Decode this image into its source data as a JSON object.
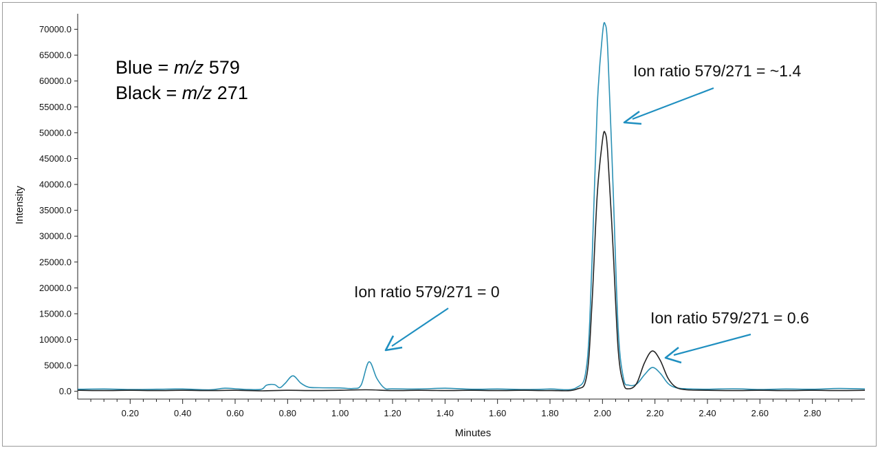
{
  "chart_data": {
    "type": "line",
    "xlabel": "Minutes",
    "ylabel": "Intensity",
    "xlim": [
      0.0,
      3.0
    ],
    "ylim": [
      -1500,
      73000
    ],
    "x_ticks": [
      "0.20",
      "0.40",
      "0.60",
      "0.80",
      "1.00",
      "1.20",
      "1.40",
      "1.60",
      "1.80",
      "2.00",
      "2.20",
      "2.40",
      "2.60",
      "2.80"
    ],
    "y_ticks": [
      "0.0",
      "5000.0",
      "10000.0",
      "15000.0",
      "20000.0",
      "25000.0",
      "30000.0",
      "35000.0",
      "40000.0",
      "45000.0",
      "50000.0",
      "55000.0",
      "60000.0",
      "65000.0",
      "70000.0"
    ],
    "legend": {
      "lines": [
        {
          "prefix": "Blue = ",
          "mz": "m/z",
          "suffix": " 579"
        },
        {
          "prefix": "Black = ",
          "mz": "m/z",
          "suffix": " 271"
        }
      ],
      "placement": "top-left"
    },
    "annotations": [
      {
        "text": "Ion ratio 579/271 = ~1.4"
      },
      {
        "text": "Ion ratio 579/271 = 0"
      },
      {
        "text": "Ion ratio 579/271 = 0.6"
      }
    ],
    "series": [
      {
        "color": "#2a90b4",
        "x": [
          0.0,
          0.1,
          0.2,
          0.3,
          0.4,
          0.5,
          0.56,
          0.6,
          0.65,
          0.7,
          0.72,
          0.75,
          0.77,
          0.79,
          0.82,
          0.85,
          0.88,
          0.92,
          1.0,
          1.05,
          1.08,
          1.11,
          1.14,
          1.17,
          1.2,
          1.3,
          1.4,
          1.5,
          1.6,
          1.7,
          1.8,
          1.9,
          1.94,
          1.96,
          1.98,
          2.0,
          2.01,
          2.02,
          2.04,
          2.06,
          2.08,
          2.1,
          2.13,
          2.16,
          2.19,
          2.22,
          2.25,
          2.28,
          2.32,
          2.4,
          2.5,
          2.6,
          2.7,
          2.8,
          2.9,
          3.0
        ],
        "y": [
          400,
          450,
          350,
          400,
          450,
          300,
          600,
          500,
          350,
          400,
          1200,
          1300,
          700,
          1500,
          3000,
          1600,
          800,
          700,
          650,
          550,
          1200,
          5700,
          2500,
          600,
          500,
          450,
          600,
          400,
          450,
          350,
          450,
          700,
          5000,
          25000,
          55000,
          69000,
          71000,
          66000,
          40000,
          12000,
          2500,
          1200,
          1400,
          3200,
          4600,
          3500,
          1500,
          700,
          500,
          400,
          500,
          350,
          450,
          400,
          550,
          450
        ]
      },
      {
        "color": "#222222",
        "x": [
          0.0,
          0.1,
          0.2,
          0.3,
          0.4,
          0.5,
          0.6,
          0.7,
          0.8,
          0.9,
          1.0,
          1.1,
          1.2,
          1.3,
          1.4,
          1.5,
          1.6,
          1.7,
          1.8,
          1.9,
          1.94,
          1.96,
          1.98,
          2.0,
          2.01,
          2.02,
          2.04,
          2.06,
          2.08,
          2.1,
          2.13,
          2.16,
          2.19,
          2.22,
          2.25,
          2.28,
          2.32,
          2.4,
          2.5,
          2.6,
          2.7,
          2.8,
          2.9,
          3.0
        ],
        "y": [
          200,
          150,
          200,
          150,
          200,
          150,
          200,
          100,
          200,
          150,
          200,
          300,
          150,
          200,
          150,
          200,
          150,
          200,
          150,
          400,
          3000,
          17000,
          38000,
          48500,
          50000,
          46000,
          28000,
          8000,
          1500,
          500,
          1500,
          5500,
          7800,
          6000,
          2500,
          800,
          300,
          200,
          150,
          200,
          150,
          200,
          150,
          200
        ]
      }
    ]
  }
}
